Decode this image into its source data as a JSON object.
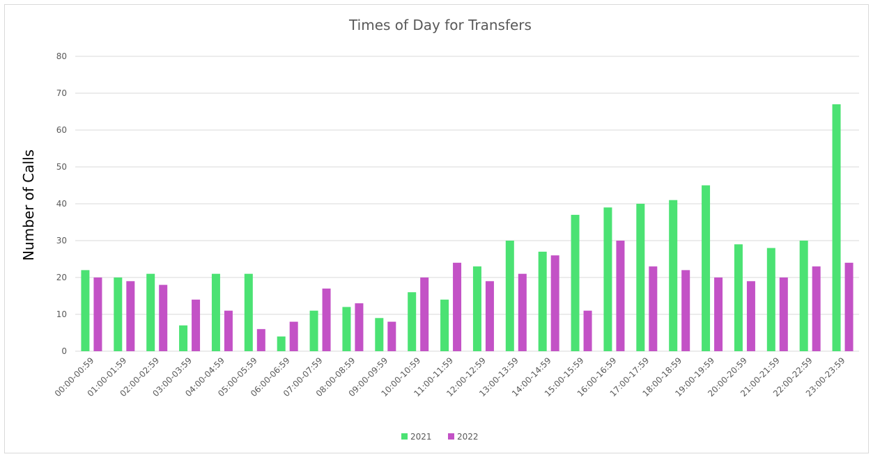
{
  "chart_data": {
    "type": "bar",
    "title": "Times of Day for Transfers",
    "y_label": "Number of Calls",
    "categories": [
      "00:00-00:59",
      "01:00-01:59",
      "02:00-02:59",
      "03:00-03:59",
      "04:00-04:59",
      "05:00-05:59",
      "06:00-06:59",
      "07:00-07:59",
      "08:00-08:59",
      "09:00-09:59",
      "10:00-10:59",
      "11:00-11:59",
      "12:00-12:59",
      "13:00-13:59",
      "14:00-14:59",
      "15:00-15:59",
      "16:00-16:59",
      "17:00-17:59",
      "18:00-18:59",
      "19:00-19:59",
      "20:00-20:59",
      "21:00-21:59",
      "22:00-22:59",
      "23:00-23:59"
    ],
    "series": [
      {
        "name": "2021",
        "color": "#4be273",
        "values": [
          22,
          20,
          21,
          7,
          21,
          21,
          4,
          11,
          12,
          9,
          16,
          14,
          23,
          30,
          27,
          37,
          39,
          40,
          41,
          45,
          29,
          28,
          30,
          67
        ]
      },
      {
        "name": "2022",
        "color": "#c352c6",
        "values": [
          20,
          19,
          18,
          14,
          11,
          6,
          8,
          17,
          13,
          8,
          20,
          24,
          19,
          21,
          26,
          11,
          30,
          23,
          22,
          20,
          19,
          20,
          23,
          24
        ]
      }
    ],
    "ylim": [
      0,
      80
    ],
    "yticks": [
      0,
      10,
      20,
      30,
      40,
      50,
      60,
      70,
      80
    ],
    "grid": true,
    "legend": "bottom"
  }
}
